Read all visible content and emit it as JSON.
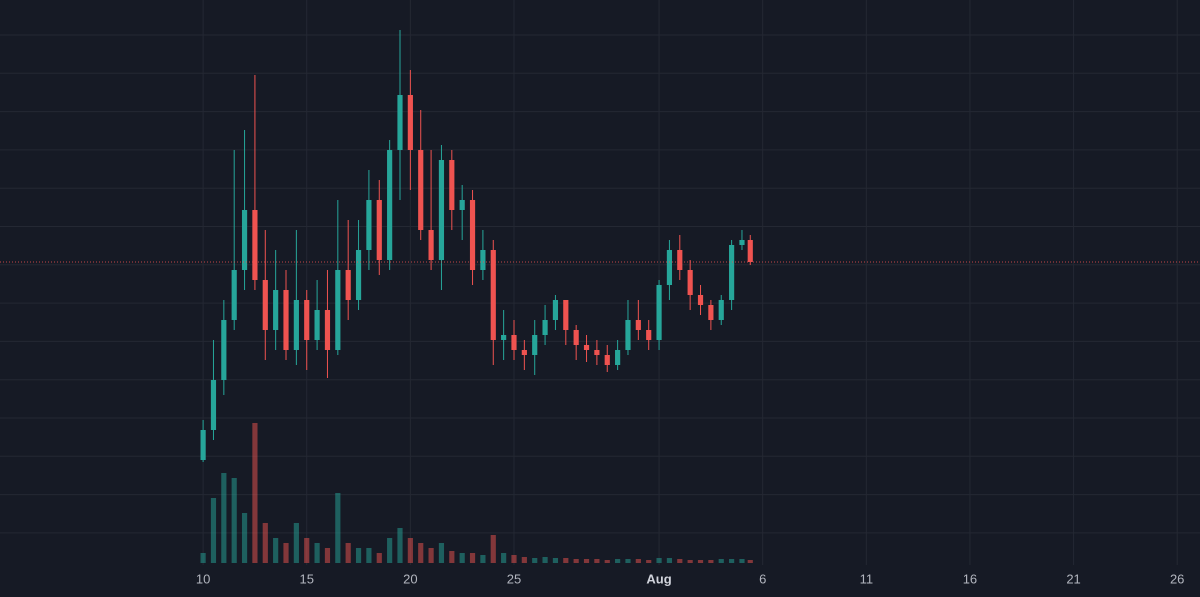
{
  "chart_data": {
    "type": "candlestick",
    "x": [
      10,
      10.5,
      11,
      11.5,
      12,
      12.5,
      13,
      13.5,
      14,
      14.5,
      15,
      15.5,
      16,
      16.5,
      17,
      17.5,
      18,
      18.5,
      19,
      19.5,
      20,
      20.5,
      21,
      21.5,
      22,
      22.5,
      23,
      23.5,
      24,
      24.5,
      25,
      25.5,
      26,
      26.5,
      27,
      27.5,
      28,
      28.5,
      29,
      29.5,
      30,
      30.5,
      31,
      31.5,
      32,
      32.5,
      33,
      33.5,
      34,
      34.5,
      35,
      35.5,
      36,
      36.4
    ],
    "open": [
      105,
      135,
      185,
      245,
      295,
      355,
      285,
      235,
      275,
      215,
      265,
      225,
      255,
      215,
      295,
      265,
      315,
      365,
      305,
      415,
      470,
      415,
      335,
      305,
      405,
      355,
      365,
      295,
      315,
      225,
      230,
      215,
      210,
      230,
      245,
      265,
      235,
      220,
      215,
      210,
      200,
      215,
      245,
      235,
      225,
      280,
      315,
      295,
      270,
      260,
      245,
      265,
      320,
      325
    ],
    "high": [
      145,
      225,
      265,
      415,
      435,
      490,
      335,
      315,
      295,
      335,
      275,
      285,
      295,
      365,
      345,
      345,
      395,
      385,
      425,
      535,
      495,
      455,
      415,
      420,
      415,
      380,
      375,
      335,
      325,
      255,
      245,
      225,
      245,
      260,
      270,
      265,
      240,
      230,
      225,
      220,
      225,
      265,
      265,
      245,
      285,
      325,
      330,
      305,
      280,
      265,
      270,
      325,
      335,
      330
    ],
    "low": [
      103,
      125,
      170,
      235,
      275,
      275,
      205,
      215,
      205,
      200,
      195,
      215,
      187,
      210,
      245,
      255,
      295,
      290,
      295,
      365,
      375,
      325,
      295,
      275,
      335,
      325,
      280,
      285,
      200,
      205,
      205,
      195,
      190,
      220,
      235,
      220,
      205,
      203,
      200,
      193,
      195,
      210,
      225,
      215,
      215,
      265,
      285,
      255,
      250,
      235,
      240,
      255,
      315,
      300
    ],
    "close": [
      135,
      185,
      245,
      295,
      355,
      285,
      235,
      275,
      215,
      265,
      225,
      255,
      215,
      295,
      265,
      315,
      365,
      305,
      415,
      470,
      415,
      335,
      305,
      405,
      355,
      365,
      295,
      315,
      225,
      230,
      215,
      210,
      230,
      245,
      265,
      235,
      220,
      215,
      210,
      200,
      215,
      245,
      235,
      225,
      280,
      315,
      295,
      270,
      260,
      245,
      265,
      320,
      325,
      303
    ],
    "volume": [
      10,
      65,
      90,
      85,
      50,
      140,
      40,
      25,
      20,
      40,
      25,
      20,
      15,
      70,
      20,
      15,
      15,
      10,
      25,
      35,
      25,
      20,
      15,
      20,
      12,
      10,
      10,
      8,
      28,
      10,
      8,
      6,
      5,
      6,
      5,
      5,
      4,
      4,
      4,
      3,
      4,
      4,
      4,
      3,
      5,
      5,
      4,
      3,
      3,
      3,
      4,
      4,
      4,
      3
    ],
    "up_color": "#26a69a",
    "down_color": "#ef5350",
    "xlim": [
      0.2,
      58.1
    ],
    "ylim": [
      0,
      565
    ],
    "volume_lim": [
      0,
      150
    ],
    "xticks": [
      {
        "value": 10,
        "label": "10"
      },
      {
        "value": 15,
        "label": "15"
      },
      {
        "value": 20,
        "label": "20"
      },
      {
        "value": 25,
        "label": "25"
      },
      {
        "value": 32,
        "label": "Aug"
      },
      {
        "value": 37,
        "label": "6"
      },
      {
        "value": 42,
        "label": "11"
      },
      {
        "value": 47,
        "label": "16"
      },
      {
        "value": 52,
        "label": "21"
      },
      {
        "value": 57,
        "label": "26"
      }
    ],
    "grid": true
  }
}
